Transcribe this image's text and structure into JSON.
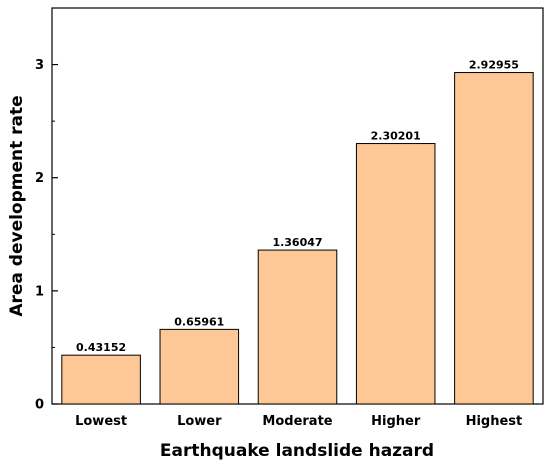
{
  "chart_data": {
    "type": "bar",
    "categories": [
      "Lowest",
      "Lower",
      "Moderate",
      "Higher",
      "Highest"
    ],
    "values": [
      0.43152,
      0.65961,
      1.36047,
      2.30201,
      2.92955
    ],
    "data_labels": [
      "0.43152",
      "0.65961",
      "1.36047",
      "2.30201",
      "2.92955"
    ],
    "xlabel": "Earthquake landslide hazard",
    "ylabel": "Area development rate",
    "ylim": [
      0,
      3.5
    ],
    "yticks": [
      0,
      1,
      2,
      3
    ],
    "ytick_labels": [
      "0",
      "1",
      "2",
      "3"
    ],
    "bar_color": "#FDC796",
    "bar_edge_color": "#000000",
    "grid": false,
    "legend": "none"
  }
}
